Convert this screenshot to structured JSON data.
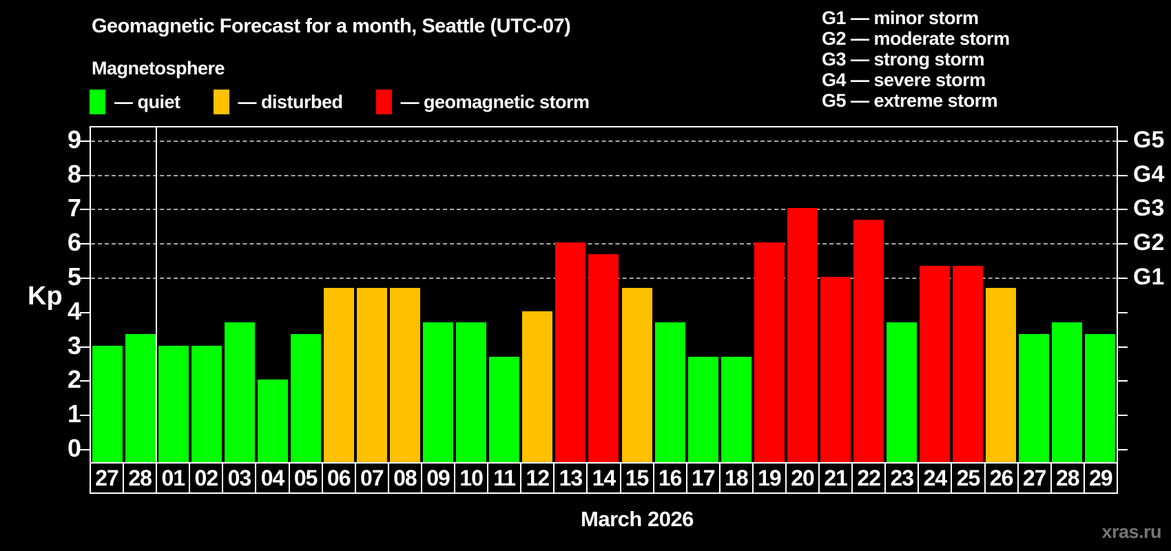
{
  "title": "Geomagnetic Forecast for a month, Seattle (UTC-07)",
  "subtitle": "Magnetosphere",
  "watermark": "xras.ru",
  "legend": [
    {
      "state": "quiet",
      "label": "— quiet"
    },
    {
      "state": "disturbed",
      "label": "— disturbed"
    },
    {
      "state": "storm",
      "label": "— geomagnetic storm"
    }
  ],
  "g_legend": [
    "G1 — minor storm",
    "G2 — moderate storm",
    "G3 — strong storm",
    "G4 — severe storm",
    "G5 — extreme storm"
  ],
  "colors": {
    "quiet": "#00ff00",
    "disturbed": "#ffc000",
    "storm": "#ff0000",
    "grid": "#a8a8a8",
    "axis": "#ffffff",
    "background": "#000000",
    "watermark": "#757575"
  },
  "chart_data": {
    "type": "bar",
    "title": "Geomagnetic Forecast for a month, Seattle (UTC-07)",
    "xlabel": "March 2026",
    "ylabel": "Kp",
    "ylim": [
      0,
      9.75
    ],
    "grid": "dashed horizontal lines at Kp 5-9 only",
    "legend_position": "top",
    "y_ticks": [
      0,
      1,
      2,
      3,
      4,
      5,
      6,
      7,
      8,
      9
    ],
    "gridline_levels": [
      5,
      6,
      7,
      8,
      9
    ],
    "right_axis_labels": [
      {
        "value": 5,
        "label": "G1"
      },
      {
        "value": 6,
        "label": "G2"
      },
      {
        "value": 7,
        "label": "G3"
      },
      {
        "value": 8,
        "label": "G4"
      },
      {
        "value": 9,
        "label": "G5"
      }
    ],
    "month_separator_after_index": 1,
    "categories": [
      "27",
      "28",
      "01",
      "02",
      "03",
      "04",
      "05",
      "06",
      "07",
      "08",
      "09",
      "10",
      "11",
      "12",
      "13",
      "14",
      "15",
      "16",
      "17",
      "18",
      "19",
      "20",
      "21",
      "22",
      "23",
      "24",
      "25",
      "26",
      "27",
      "28",
      "29"
    ],
    "values": [
      3.0,
      3.33,
      3.0,
      3.0,
      3.67,
      2.0,
      3.33,
      4.67,
      4.67,
      4.67,
      3.67,
      3.67,
      2.67,
      4.0,
      6.0,
      5.67,
      4.67,
      3.67,
      2.67,
      2.67,
      6.0,
      7.0,
      5.0,
      6.67,
      3.67,
      5.33,
      5.33,
      4.67,
      3.33,
      3.67,
      3.33
    ],
    "states": [
      "quiet",
      "quiet",
      "quiet",
      "quiet",
      "quiet",
      "quiet",
      "quiet",
      "disturbed",
      "disturbed",
      "disturbed",
      "quiet",
      "quiet",
      "quiet",
      "disturbed",
      "storm",
      "storm",
      "disturbed",
      "quiet",
      "quiet",
      "quiet",
      "storm",
      "storm",
      "storm",
      "storm",
      "quiet",
      "storm",
      "storm",
      "disturbed",
      "quiet",
      "quiet",
      "quiet"
    ]
  }
}
